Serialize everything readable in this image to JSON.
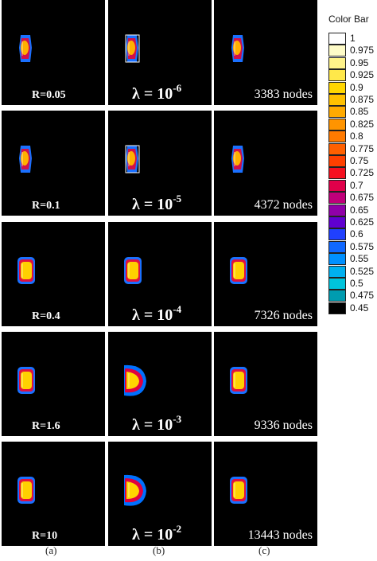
{
  "colorbar": {
    "title": "Color Bar",
    "levels": [
      "1",
      "0.975",
      "0.95",
      "0.925",
      "0.9",
      "0.875",
      "0.85",
      "0.825",
      "0.8",
      "0.775",
      "0.75",
      "0.725",
      "0.7",
      "0.675",
      "0.65",
      "0.625",
      "0.6",
      "0.575",
      "0.55",
      "0.525",
      "0.5",
      "0.475",
      "0.45"
    ],
    "colors": [
      "#ffffff",
      "#fffcc8",
      "#fff38a",
      "#ffe84a",
      "#ffd600",
      "#ffc000",
      "#ffaa00",
      "#ff9400",
      "#ff7a00",
      "#ff6000",
      "#ff4000",
      "#f51020",
      "#e0004a",
      "#c0007a",
      "#9000a8",
      "#6000d0",
      "#2040ff",
      "#1068ff",
      "#0090ff",
      "#00b0f0",
      "#00c4dc",
      "#009cb0",
      "#000000"
    ]
  },
  "rows": [
    {
      "a": "R=0.05",
      "b_base": "λ = 10",
      "b_exp": "-6",
      "c": "3383 nodes"
    },
    {
      "a": "R=0.1",
      "b_base": "λ = 10",
      "b_exp": "-5",
      "c": "4372 nodes"
    },
    {
      "a": "R=0.4",
      "b_base": "λ = 10",
      "b_exp": "-4",
      "c": "7326 nodes"
    },
    {
      "a": "R=1.6",
      "b_base": "λ = 10",
      "b_exp": "-3",
      "c": "9336 nodes"
    },
    {
      "a": "R=10",
      "b_base": "λ = 10",
      "b_exp": "-2",
      "c": "13443 nodes"
    }
  ],
  "column_labels": [
    "(a)",
    "(b)",
    "(c)"
  ]
}
